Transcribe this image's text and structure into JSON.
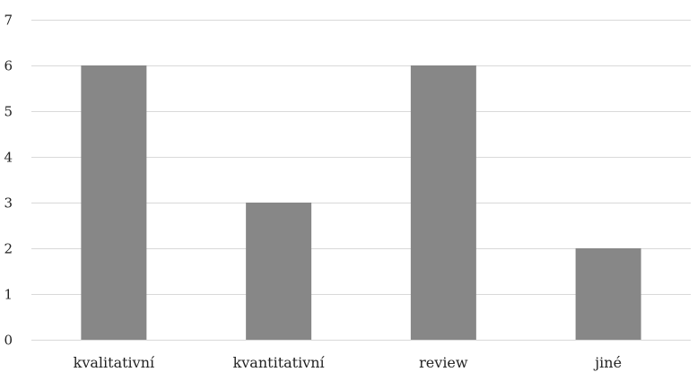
{
  "chart_data": {
    "type": "bar",
    "categories": [
      "kvalitativní",
      "kvantitativní",
      "review",
      "jiné"
    ],
    "values": [
      6,
      3,
      6,
      2
    ],
    "ylim": [
      0,
      7
    ],
    "yticks": [
      0,
      1,
      2,
      3,
      4,
      5,
      6,
      7
    ],
    "grid": true,
    "legend": "none",
    "bar_color": "#878787",
    "grid_color": "#d9d9d9"
  }
}
